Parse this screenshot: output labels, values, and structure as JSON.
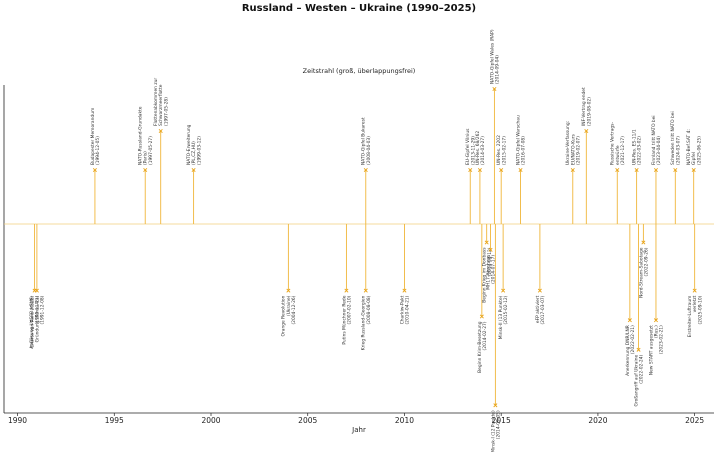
{
  "chart_data": {
    "type": "timeline",
    "title": "Russland – Westen – Ukraine (1990–2025)",
    "subtitle": "Zeitstrahl (groß, überlappungsfrei)",
    "xlabel": "Jahr",
    "xlim": [
      1989.3,
      2026.0
    ],
    "xticks": [
      1990,
      1995,
      2000,
      2005,
      2010,
      2015,
      2020,
      2025
    ],
    "grid": false,
    "colors": {
      "stem": "#f0b63a",
      "marker": "#e8a317",
      "baseline": "#f3cf7c",
      "text": "#333333"
    },
    "events": [
      {
        "x": 1990.88,
        "dir": "down",
        "len": 0.36,
        "lines": [
          "Charta von Paris (KSZE)",
          "(1990-11-21)"
        ]
      },
      {
        "x": 1991.0,
        "dir": "down",
        "len": 0.36,
        "lines": [
          "Auflösung UdSSR / GUS-",
          "Gründung (Alma-Ata)",
          "(1991-12-08)"
        ]
      },
      {
        "x": 1994.0,
        "dir": "up",
        "len": 0.36,
        "lines": [
          "Budapester Memorandum",
          "(1994-12-05)"
        ]
      },
      {
        "x": 1996.6,
        "dir": "up",
        "len": 0.36,
        "lines": [
          "NATO-Russland-Grundakte",
          "(Paris)",
          "(1997-05-27)"
        ]
      },
      {
        "x": 1997.4,
        "dir": "up",
        "len": 0.62,
        "lines": [
          "Flottenabkommen zur",
          "Schwarzmeerflotte",
          "(1997-05-28)"
        ]
      },
      {
        "x": 1999.1,
        "dir": "up",
        "len": 0.36,
        "lines": [
          "NATO-Erweiterung",
          "(PL,CZ,HU)",
          "(1999-03-12)"
        ]
      },
      {
        "x": 2004.0,
        "dir": "down",
        "len": 0.36,
        "lines": [
          "Orange Revolution",
          "(Ukraine)",
          "(2004-12-26)"
        ]
      },
      {
        "x": 2007.0,
        "dir": "down",
        "len": 0.36,
        "lines": [
          "Putins Münchner Rede",
          "(2007-02-10)"
        ]
      },
      {
        "x": 2008.0,
        "dir": "down",
        "len": 0.36,
        "lines": [
          "Krieg Russland–Georgien",
          "(2008-08-08)"
        ]
      },
      {
        "x": 2008.0,
        "dir": "up",
        "len": 0.36,
        "lines": [
          "NATO-Gipfel Bukarest",
          "(2008-04-03)"
        ]
      },
      {
        "x": 2010.0,
        "dir": "down",
        "len": 0.36,
        "lines": [
          "Charkiw-Pakt",
          "(2010-04-21)"
        ]
      },
      {
        "x": 2013.4,
        "dir": "up",
        "len": 0.36,
        "lines": [
          "EU-Gipfel Vilnius",
          "(2013-11-29)"
        ]
      },
      {
        "x": 2013.9,
        "dir": "up",
        "len": 0.36,
        "lines": [
          "UN-Res. 68/262",
          "(2014-03-27)"
        ]
      },
      {
        "x": 2014.0,
        "dir": "down",
        "len": 0.5,
        "lines": [
          "Beginn Krim-Besetzung",
          "(2014-02-27)"
        ]
      },
      {
        "x": 2014.25,
        "dir": "down",
        "len": 0.1,
        "lines": [
          "Beginn Krieg im Donbass",
          "(2014-04-12)"
        ]
      },
      {
        "x": 2014.45,
        "dir": "down",
        "len": 0.14,
        "lines": [
          "MH17-Abschuss",
          "(2014-07-17)"
        ]
      },
      {
        "x": 2014.65,
        "dir": "up",
        "len": 0.9,
        "lines": [
          "NATO-Gipfel Wales (RAP)",
          "(2014-09-04)"
        ]
      },
      {
        "x": 2014.7,
        "dir": "down",
        "len": 0.98,
        "lines": [
          "Minsk-I (12 Punkte)",
          "(2014-09-05)"
        ]
      },
      {
        "x": 2015.0,
        "dir": "up",
        "len": 0.36,
        "lines": [
          "UN-Res. 2202",
          "(2015-02-17)"
        ]
      },
      {
        "x": 2015.1,
        "dir": "down",
        "len": 0.36,
        "lines": [
          "Minsk-II (13 Punkte)",
          "(2015-02-12)"
        ]
      },
      {
        "x": 2016.0,
        "dir": "up",
        "len": 0.36,
        "lines": [
          "NATO-Gipfel Warschau",
          "(2016-07-08)"
        ]
      },
      {
        "x": 2017.0,
        "dir": "down",
        "len": 0.36,
        "lines": [
          "eFP aktiviert",
          "(2017-03-07)"
        ]
      },
      {
        "x": 2018.7,
        "dir": "up",
        "len": 0.36,
        "lines": [
          "Ukraine-Verfassung:",
          "EU/NATO-Kurs",
          "(2019-02-07)"
        ]
      },
      {
        "x": 2019.4,
        "dir": "up",
        "len": 0.62,
        "lines": [
          "INF-Vertrag endet",
          "(2019-08-02)"
        ]
      },
      {
        "x": 2021.0,
        "dir": "up",
        "len": 0.36,
        "lines": [
          "Russische Vertrags-",
          "entwürfe",
          "(2021-12-17)"
        ]
      },
      {
        "x": 2021.65,
        "dir": "down",
        "len": 0.52,
        "lines": [
          "Anerkennung DNR/LNR",
          "(2022-02-21)"
        ]
      },
      {
        "x": 2022.0,
        "dir": "up",
        "len": 0.36,
        "lines": [
          "UN-Res. ES-11/1",
          "(2022-03-02)"
        ]
      },
      {
        "x": 2022.1,
        "dir": "down",
        "len": 0.68,
        "lines": [
          "Großangriff auf Ukraine",
          "(2022-02-24)"
        ]
      },
      {
        "x": 2022.35,
        "dir": "down",
        "len": 0.1,
        "lines": [
          "Nord-Stream-Sabotage",
          "(2022-09-26)"
        ]
      },
      {
        "x": 2023.0,
        "dir": "up",
        "len": 0.36,
        "lines": [
          "Finnland tritt NATO bei",
          "(2023-04-04)"
        ]
      },
      {
        "x": 2023.0,
        "dir": "down",
        "len": 0.52,
        "lines": [
          "New START ausgesetzt",
          "(Rus.)",
          "(2023-02-21)"
        ]
      },
      {
        "x": 2024.0,
        "dir": "up",
        "len": 0.36,
        "lines": [
          "Schweden tritt NATO bei",
          "(2024-03-07)"
        ]
      },
      {
        "x": 2024.95,
        "dir": "up",
        "len": 0.36,
        "lines": [
          "NATO-Bef.SAT 4:",
          "Gipfel",
          "(2025-06-25)"
        ]
      },
      {
        "x": 2025.0,
        "dir": "down",
        "len": 0.36,
        "lines": [
          "Erstreiter-Luftraum",
          "verletzt",
          "(2025-09-10)"
        ]
      }
    ]
  }
}
